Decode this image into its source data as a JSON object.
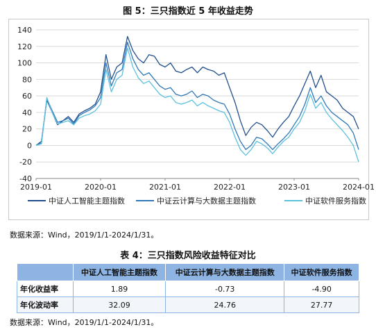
{
  "figure": {
    "title": "图 5：三只指数近 5 年收益走势",
    "source": "数据来源：Wind，2019/1/1-2024/1/31。"
  },
  "chart_data": {
    "type": "line",
    "title": "图 5：三只指数近 5 年收益走势",
    "ylim": [
      -40,
      140
    ],
    "yticks": [
      -40,
      -20,
      0,
      20,
      40,
      60,
      80,
      100,
      120,
      140
    ],
    "xlim": [
      "2019-01",
      "2024-01"
    ],
    "xticks": [
      "2019-01",
      "2020-01",
      "2021-01",
      "2022-01",
      "2023-01",
      "2024-01"
    ],
    "grid": true,
    "legend_position": "bottom",
    "series": [
      {
        "name": "中证人工智能主题指数",
        "color": "#1f4e8c",
        "x": [
          "2019-01",
          "2019-02",
          "2019-03",
          "2019-04",
          "2019-05",
          "2019-06",
          "2019-07",
          "2019-08",
          "2019-09",
          "2019-10",
          "2019-11",
          "2019-12",
          "2020-01",
          "2020-02",
          "2020-03",
          "2020-04",
          "2020-05",
          "2020-06",
          "2020-07",
          "2020-08",
          "2020-09",
          "2020-10",
          "2020-11",
          "2020-12",
          "2021-01",
          "2021-02",
          "2021-03",
          "2021-04",
          "2021-05",
          "2021-06",
          "2021-07",
          "2021-08",
          "2021-09",
          "2021-10",
          "2021-11",
          "2021-12",
          "2022-01",
          "2022-02",
          "2022-03",
          "2022-04",
          "2022-05",
          "2022-06",
          "2022-07",
          "2022-08",
          "2022-09",
          "2022-10",
          "2022-11",
          "2022-12",
          "2023-01",
          "2023-02",
          "2023-03",
          "2023-04",
          "2023-05",
          "2023-06",
          "2023-07",
          "2023-08",
          "2023-09",
          "2023-10",
          "2023-11",
          "2023-12",
          "2024-01"
        ],
        "values": [
          0,
          5,
          55,
          40,
          25,
          30,
          35,
          28,
          38,
          42,
          45,
          50,
          65,
          110,
          80,
          95,
          100,
          132,
          115,
          105,
          100,
          110,
          108,
          98,
          95,
          100,
          90,
          88,
          92,
          95,
          88,
          95,
          92,
          90,
          85,
          88,
          70,
          52,
          30,
          12,
          22,
          28,
          25,
          18,
          10,
          20,
          28,
          35,
          48,
          60,
          75,
          90,
          70,
          85,
          65,
          60,
          55,
          45,
          40,
          35,
          20
        ]
      },
      {
        "name": "中证云计算与大数据主题指数",
        "color": "#2f78b7",
        "x": [
          "2019-01",
          "2019-02",
          "2019-03",
          "2019-04",
          "2019-05",
          "2019-06",
          "2019-07",
          "2019-08",
          "2019-09",
          "2019-10",
          "2019-11",
          "2019-12",
          "2020-01",
          "2020-02",
          "2020-03",
          "2020-04",
          "2020-05",
          "2020-06",
          "2020-07",
          "2020-08",
          "2020-09",
          "2020-10",
          "2020-11",
          "2020-12",
          "2021-01",
          "2021-02",
          "2021-03",
          "2021-04",
          "2021-05",
          "2021-06",
          "2021-07",
          "2021-08",
          "2021-09",
          "2021-10",
          "2021-11",
          "2021-12",
          "2022-01",
          "2022-02",
          "2022-03",
          "2022-04",
          "2022-05",
          "2022-06",
          "2022-07",
          "2022-08",
          "2022-09",
          "2022-10",
          "2022-11",
          "2022-12",
          "2023-01",
          "2023-02",
          "2023-03",
          "2023-04",
          "2023-05",
          "2023-06",
          "2023-07",
          "2023-08",
          "2023-09",
          "2023-10",
          "2023-11",
          "2023-12",
          "2024-01"
        ],
        "values": [
          0,
          3,
          57,
          42,
          28,
          30,
          33,
          26,
          36,
          40,
          43,
          48,
          58,
          100,
          72,
          88,
          92,
          125,
          105,
          92,
          85,
          88,
          80,
          72,
          68,
          70,
          62,
          60,
          62,
          66,
          58,
          62,
          60,
          55,
          52,
          50,
          38,
          20,
          5,
          -5,
          0,
          10,
          8,
          2,
          -5,
          2,
          8,
          15,
          25,
          35,
          50,
          70,
          52,
          60,
          48,
          40,
          35,
          30,
          25,
          15,
          -5
        ]
      },
      {
        "name": "中证软件服务指数",
        "color": "#5bc0de",
        "x": [
          "2019-01",
          "2019-02",
          "2019-03",
          "2019-04",
          "2019-05",
          "2019-06",
          "2019-07",
          "2019-08",
          "2019-09",
          "2019-10",
          "2019-11",
          "2019-12",
          "2020-01",
          "2020-02",
          "2020-03",
          "2020-04",
          "2020-05",
          "2020-06",
          "2020-07",
          "2020-08",
          "2020-09",
          "2020-10",
          "2020-11",
          "2020-12",
          "2021-01",
          "2021-02",
          "2021-03",
          "2021-04",
          "2021-05",
          "2021-06",
          "2021-07",
          "2021-08",
          "2021-09",
          "2021-10",
          "2021-11",
          "2021-12",
          "2022-01",
          "2022-02",
          "2022-03",
          "2022-04",
          "2022-05",
          "2022-06",
          "2022-07",
          "2022-08",
          "2022-09",
          "2022-10",
          "2022-11",
          "2022-12",
          "2023-01",
          "2023-02",
          "2023-03",
          "2023-04",
          "2023-05",
          "2023-06",
          "2023-07",
          "2023-08",
          "2023-09",
          "2023-10",
          "2023-11",
          "2023-12",
          "2024-01"
        ],
        "values": [
          0,
          2,
          58,
          40,
          26,
          28,
          30,
          25,
          33,
          36,
          38,
          42,
          50,
          92,
          65,
          80,
          85,
          118,
          95,
          82,
          75,
          78,
          70,
          62,
          58,
          60,
          52,
          50,
          52,
          55,
          48,
          52,
          48,
          45,
          42,
          40,
          28,
          10,
          -5,
          -12,
          -5,
          5,
          2,
          -3,
          -10,
          -2,
          5,
          10,
          20,
          28,
          42,
          62,
          45,
          52,
          40,
          32,
          25,
          18,
          10,
          0,
          -20
        ]
      }
    ]
  },
  "table": {
    "title": "表 4：三只指数风险收益特征对比",
    "headers": [
      "",
      "中证人工智能主题指数",
      "中证云计算与大数据主题指数",
      "中证软件服务指数"
    ],
    "rows": [
      {
        "label": "年化收益率",
        "values": [
          "1.89",
          "-0.73",
          "-4.90"
        ]
      },
      {
        "label": "年化波动率",
        "values": [
          "32.09",
          "24.76",
          "27.77"
        ]
      }
    ],
    "header_color": "#8db4e2",
    "source": "数据来源：Wind，2019/1/1-2024/1/31。"
  }
}
